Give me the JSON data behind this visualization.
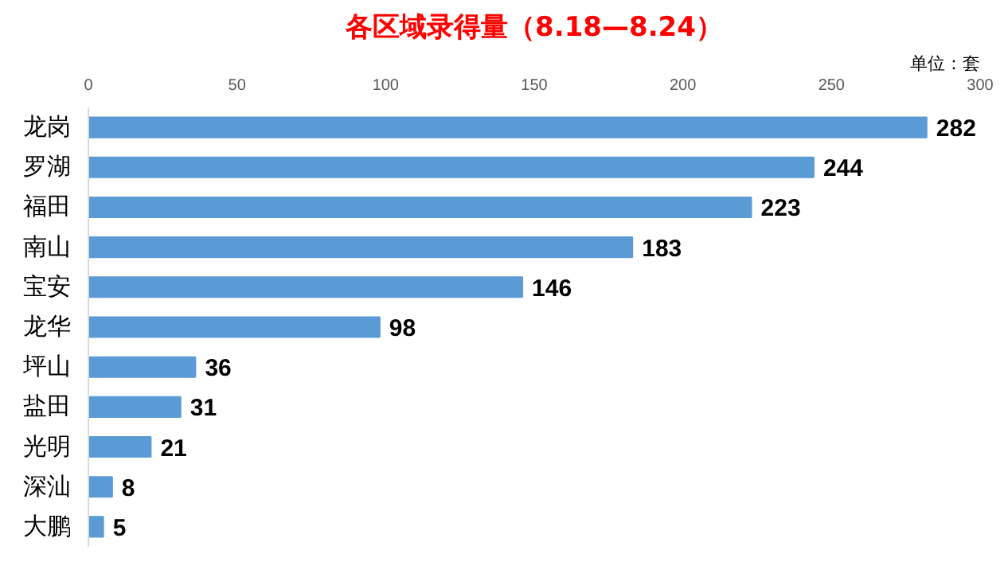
{
  "chart_data": {
    "type": "bar",
    "orientation": "horizontal",
    "title": "各区域录得量（8.18—8.24）",
    "annotations": [
      "单位：套"
    ],
    "categories": [
      "龙岗",
      "罗湖",
      "福田",
      "南山",
      "宝安",
      "龙华",
      "坪山",
      "盐田",
      "光明",
      "深汕",
      "大鹏"
    ],
    "values": [
      282,
      244,
      223,
      183,
      146,
      98,
      36,
      31,
      21,
      8,
      5
    ],
    "color": "#5b9bd5",
    "xlim": [
      0,
      300
    ],
    "xticks": [
      0,
      50,
      100,
      150,
      200,
      250,
      300
    ],
    "grid": false,
    "data_labels": true
  }
}
